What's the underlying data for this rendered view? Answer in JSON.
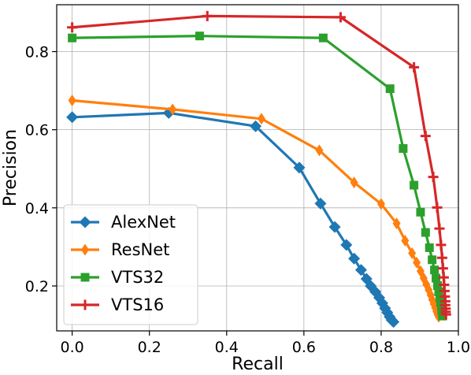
{
  "chart_data": {
    "type": "line",
    "title": "",
    "xlabel": "Recall",
    "ylabel": "Precision",
    "xlim": [
      -0.04,
      1.0
    ],
    "ylim": [
      0.085,
      0.92
    ],
    "xticks": [
      {
        "value": 0.0,
        "label": "0.0"
      },
      {
        "value": 0.2,
        "label": "0.2"
      },
      {
        "value": 0.4,
        "label": "0.4"
      },
      {
        "value": 0.6,
        "label": "0.6"
      },
      {
        "value": 0.8,
        "label": "0.8"
      },
      {
        "value": 1.0,
        "label": "1.0"
      }
    ],
    "yticks": [
      {
        "value": 0.2,
        "label": "0.2"
      },
      {
        "value": 0.4,
        "label": "0.4"
      },
      {
        "value": 0.6,
        "label": "0.6"
      },
      {
        "value": 0.8,
        "label": "0.8"
      }
    ],
    "grid": true,
    "legend_position": "bottom-left",
    "series": [
      {
        "name": "AlexNet",
        "color": "#1f77b4",
        "marker": "diamond",
        "points": [
          [
            0.0,
            0.632
          ],
          [
            0.25,
            0.643
          ],
          [
            0.475,
            0.609
          ],
          [
            0.588,
            0.503
          ],
          [
            0.643,
            0.411
          ],
          [
            0.68,
            0.351
          ],
          [
            0.71,
            0.305
          ],
          [
            0.73,
            0.27
          ],
          [
            0.748,
            0.241
          ],
          [
            0.762,
            0.218
          ],
          [
            0.773,
            0.2
          ],
          [
            0.785,
            0.185
          ],
          [
            0.795,
            0.17
          ],
          [
            0.803,
            0.156
          ],
          [
            0.81,
            0.143
          ],
          [
            0.816,
            0.132
          ],
          [
            0.822,
            0.121
          ],
          [
            0.827,
            0.113
          ],
          [
            0.832,
            0.108
          ]
        ]
      },
      {
        "name": "ResNet",
        "color": "#ff7f0e",
        "marker": "thin_diamond",
        "points": [
          [
            0.0,
            0.675
          ],
          [
            0.26,
            0.652
          ],
          [
            0.49,
            0.628
          ],
          [
            0.64,
            0.547
          ],
          [
            0.73,
            0.465
          ],
          [
            0.8,
            0.41
          ],
          [
            0.84,
            0.36
          ],
          [
            0.862,
            0.316
          ],
          [
            0.88,
            0.284
          ],
          [
            0.892,
            0.26
          ],
          [
            0.902,
            0.238
          ],
          [
            0.91,
            0.22
          ],
          [
            0.917,
            0.204
          ],
          [
            0.923,
            0.19
          ],
          [
            0.928,
            0.177
          ],
          [
            0.932,
            0.165
          ],
          [
            0.936,
            0.154
          ],
          [
            0.94,
            0.144
          ],
          [
            0.943,
            0.135
          ],
          [
            0.946,
            0.127
          ],
          [
            0.949,
            0.121
          ]
        ]
      },
      {
        "name": "VTS32",
        "color": "#2ca02c",
        "marker": "square",
        "points": [
          [
            0.0,
            0.835
          ],
          [
            0.33,
            0.84
          ],
          [
            0.65,
            0.835
          ],
          [
            0.823,
            0.705
          ],
          [
            0.857,
            0.552
          ],
          [
            0.885,
            0.458
          ],
          [
            0.902,
            0.389
          ],
          [
            0.915,
            0.337
          ],
          [
            0.925,
            0.298
          ],
          [
            0.932,
            0.267
          ],
          [
            0.938,
            0.241
          ],
          [
            0.942,
            0.22
          ],
          [
            0.946,
            0.201
          ],
          [
            0.949,
            0.185
          ],
          [
            0.952,
            0.17
          ],
          [
            0.954,
            0.158
          ],
          [
            0.956,
            0.147
          ],
          [
            0.957,
            0.138
          ],
          [
            0.958,
            0.13
          ],
          [
            0.959,
            0.123
          ]
        ]
      },
      {
        "name": "VTS16",
        "color": "#d62728",
        "marker": "plus",
        "points": [
          [
            0.0,
            0.862
          ],
          [
            0.35,
            0.891
          ],
          [
            0.695,
            0.888
          ],
          [
            0.885,
            0.76
          ],
          [
            0.915,
            0.584
          ],
          [
            0.935,
            0.479
          ],
          [
            0.945,
            0.401
          ],
          [
            0.951,
            0.347
          ],
          [
            0.955,
            0.305
          ],
          [
            0.958,
            0.272
          ],
          [
            0.96,
            0.245
          ],
          [
            0.962,
            0.222
          ],
          [
            0.963,
            0.203
          ],
          [
            0.964,
            0.187
          ],
          [
            0.965,
            0.173
          ],
          [
            0.966,
            0.161
          ],
          [
            0.966,
            0.151
          ],
          [
            0.967,
            0.142
          ],
          [
            0.967,
            0.134
          ],
          [
            0.968,
            0.127
          ]
        ]
      }
    ]
  }
}
